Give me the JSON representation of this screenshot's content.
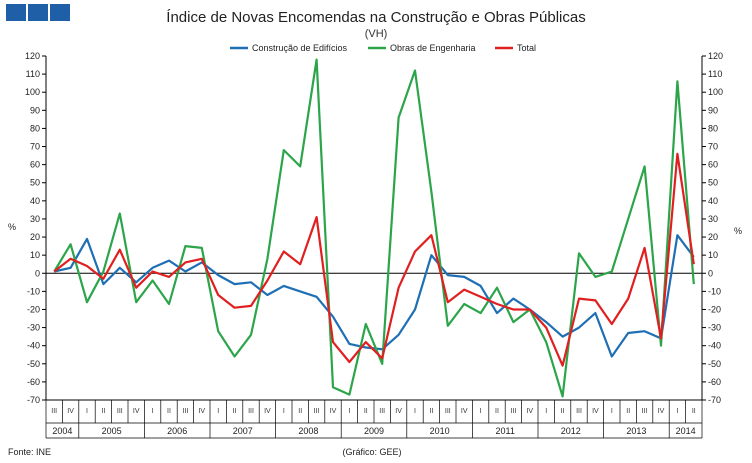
{
  "brand": {
    "color": "#1f5fa8",
    "squares": 3
  },
  "chart_data": {
    "type": "line",
    "title": "Índice de Novas Encomendas na Construção e Obras Públicas",
    "subtitle": "(VH)",
    "ylabel_left": "%",
    "ylabel_right": "%",
    "ylim": [
      -70,
      120
    ],
    "yticks": [
      120,
      110,
      100,
      90,
      80,
      70,
      60,
      50,
      40,
      30,
      20,
      10,
      0,
      -10,
      -20,
      -30,
      -40,
      -50,
      -60,
      -70
    ],
    "quarters": [
      "III",
      "IV",
      "I",
      "II",
      "III",
      "IV",
      "I",
      "II",
      "III",
      "IV",
      "I",
      "II",
      "III",
      "IV",
      "I",
      "II",
      "III",
      "IV",
      "I",
      "II",
      "III",
      "IV",
      "I",
      "II",
      "III",
      "IV",
      "I",
      "II",
      "III",
      "IV",
      "I",
      "II",
      "III",
      "IV",
      "I",
      "II",
      "III",
      "IV",
      "I",
      "II"
    ],
    "years": [
      {
        "label": "2004",
        "quarters": 2
      },
      {
        "label": "2005",
        "quarters": 4
      },
      {
        "label": "2006",
        "quarters": 4
      },
      {
        "label": "2007",
        "quarters": 4
      },
      {
        "label": "2008",
        "quarters": 4
      },
      {
        "label": "2009",
        "quarters": 4
      },
      {
        "label": "2010",
        "quarters": 4
      },
      {
        "label": "2011",
        "quarters": 4
      },
      {
        "label": "2012",
        "quarters": 4
      },
      {
        "label": "2013",
        "quarters": 4
      },
      {
        "label": "2014",
        "quarters": 2
      }
    ],
    "series": [
      {
        "name": "Construção de Edifícios",
        "color": "#1f6fb5",
        "values": [
          1,
          3,
          19,
          -6,
          3,
          -5,
          3,
          7,
          1,
          6,
          -1,
          -6,
          -5,
          -12,
          -7,
          -10,
          -13,
          -24,
          -39,
          -41,
          -42,
          -34,
          -20,
          10,
          -1,
          -2,
          -7,
          -22,
          -14,
          -20,
          -27,
          -35,
          -30,
          -22,
          -46,
          -33,
          -32,
          -36,
          21,
          9
        ]
      },
      {
        "name": "Obras de Engenharia",
        "color": "#2ca54a",
        "values": [
          1,
          16,
          -16,
          1,
          33,
          -16,
          -4,
          -17,
          15,
          14,
          -32,
          -46,
          -34,
          8,
          68,
          59,
          118,
          -63,
          -67,
          -28,
          -50,
          86,
          112,
          45,
          -29,
          -17,
          -22,
          -8,
          -27,
          -20,
          -38,
          -68,
          11,
          -2,
          1,
          30,
          59,
          -40,
          106,
          -6
        ]
      },
      {
        "name": "Total",
        "color": "#e02020",
        "values": [
          1,
          8,
          4,
          -3,
          13,
          -8,
          1,
          -2,
          6,
          8,
          -12,
          -19,
          -18,
          -4,
          12,
          5,
          31,
          -38,
          -49,
          -38,
          -47,
          -8,
          12,
          21,
          -16,
          -9,
          -13,
          -17,
          -20,
          -20,
          -30,
          -51,
          -14,
          -15,
          -28,
          -14,
          14,
          -36,
          66,
          5
        ]
      }
    ]
  },
  "footer": {
    "source": "Fonte: INE",
    "credit": "(Gráfico: GEE)"
  }
}
